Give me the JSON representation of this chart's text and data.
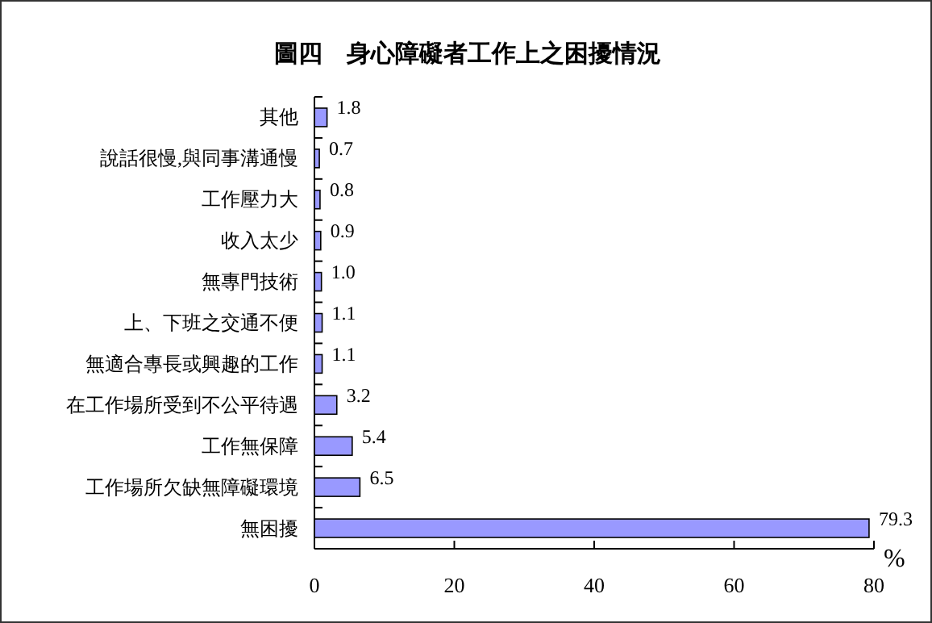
{
  "chart_data": {
    "type": "bar",
    "orientation": "horizontal",
    "title": "圖四　身心障礙者工作上之困擾情況",
    "xlabel": "%",
    "categories": [
      "其他",
      "說話很慢,與同事溝通慢",
      "工作壓力大",
      "收入太少",
      "無專門技術",
      "上、下班之交通不便",
      "無適合專長或興趣的工作",
      "在工作場所受到不公平待遇",
      "工作無保障",
      "工作場所欠缺無障礙環境",
      "無困擾"
    ],
    "values": [
      1.8,
      0.7,
      0.8,
      0.9,
      1.0,
      1.1,
      1.1,
      3.2,
      5.4,
      6.5,
      79.3
    ],
    "value_labels": [
      "1.8",
      "0.7",
      "0.8",
      "0.9",
      "1.0",
      "1.1",
      "1.1",
      "3.2",
      "5.4",
      "6.5",
      "79.3"
    ],
    "color": "#9999ff",
    "xlim": [
      0,
      80
    ],
    "xticks": [
      0,
      20,
      40,
      60,
      80
    ],
    "grid": false
  }
}
